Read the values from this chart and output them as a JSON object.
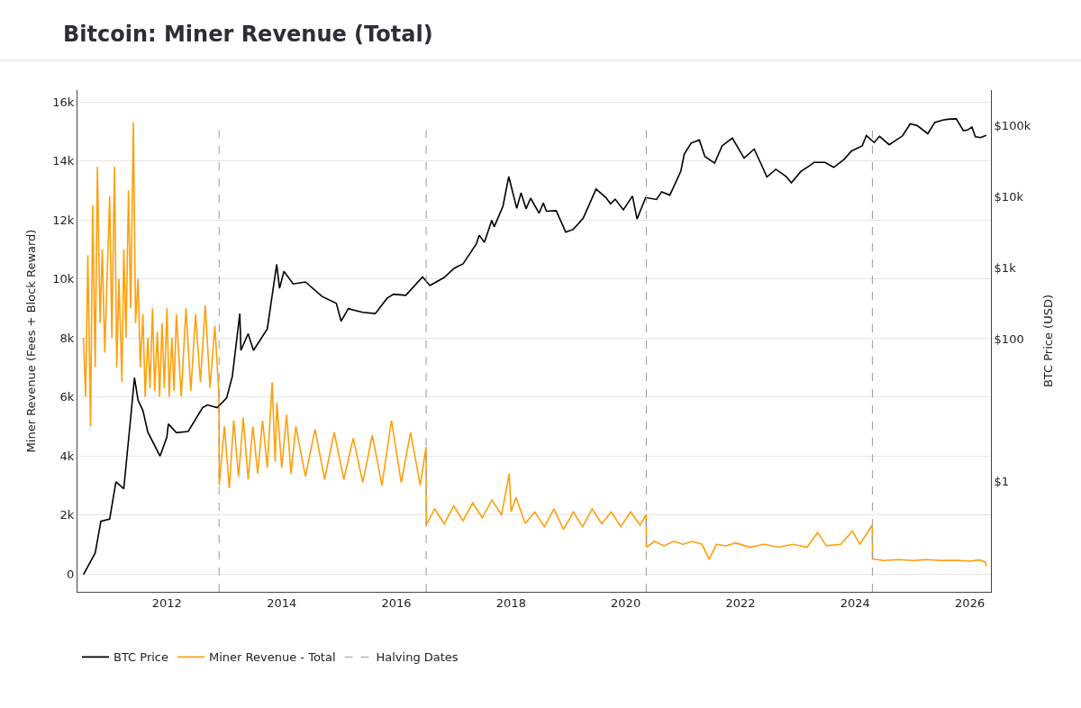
{
  "chart_data": {
    "type": "line",
    "title": "Bitcoin: Miner Revenue (Total)",
    "ylabel": "Miner Revenue (Fees + Block Reward)",
    "y2label": "BTC Price (USD)",
    "xlim": [
      "2010-06-10",
      "2026-05-15"
    ],
    "xticks": [
      {
        "value": "2012-01-01",
        "label": "2012"
      },
      {
        "value": "2014-01-01",
        "label": "2014"
      },
      {
        "value": "2016-01-01",
        "label": "2016"
      },
      {
        "value": "2018-01-01",
        "label": "2018"
      },
      {
        "value": "2020-01-01",
        "label": "2020"
      },
      {
        "value": "2022-01-01",
        "label": "2022"
      },
      {
        "value": "2024-01-01",
        "label": "2024"
      },
      {
        "value": "2026-01-01",
        "label": "2026"
      }
    ],
    "ylim": [
      -610,
      16400
    ],
    "yticks": [
      {
        "value": 0,
        "label": "0"
      },
      {
        "value": 2000,
        "label": "2k"
      },
      {
        "value": 4000,
        "label": "4k"
      },
      {
        "value": 6000,
        "label": "6k"
      },
      {
        "value": 8000,
        "label": "8k"
      },
      {
        "value": 10000,
        "label": "10k"
      },
      {
        "value": 12000,
        "label": "12k"
      },
      {
        "value": 14000,
        "label": "14k"
      },
      {
        "value": 16000,
        "label": "16k"
      }
    ],
    "y2lim": [
      0.0286,
      316000
    ],
    "y2ticks": [
      {
        "value": 1,
        "label": "$1"
      },
      {
        "value": 100,
        "label": "$100"
      },
      {
        "value": 1000,
        "label": "$1k"
      },
      {
        "value": 10000,
        "label": "$10k"
      },
      {
        "value": 100000,
        "label": "$100k"
      }
    ],
    "log": "y2",
    "grid": "y",
    "legend": "bottom",
    "marker": "none",
    "line_style": "solid",
    "series": [
      {
        "name": "BTC Price",
        "color": "#000000",
        "axis": "y2",
        "x": [
          "2010-07-18",
          "2010-10-01",
          "2010-11-06",
          "2011-01-01",
          "2011-02-10",
          "2011-04-01",
          "2011-05-15",
          "2011-06-08",
          "2011-07-01",
          "2011-08-01",
          "2011-09-01",
          "2011-11-18",
          "2011-12-31",
          "2012-01-10",
          "2012-03-01",
          "2012-05-15",
          "2012-08-15",
          "2012-09-15",
          "2012-11-15",
          "2013-01-15",
          "2013-02-20",
          "2013-04-09",
          "2013-04-16",
          "2013-06-01",
          "2013-07-05",
          "2013-10-01",
          "2013-11-30",
          "2013-12-18",
          "2014-01-15",
          "2014-03-15",
          "2014-06-01",
          "2014-09-15",
          "2014-12-15",
          "2015-01-14",
          "2015-03-01",
          "2015-06-01",
          "2015-08-20",
          "2015-11-04",
          "2015-12-15",
          "2016-03-01",
          "2016-06-16",
          "2016-08-02",
          "2016-11-01",
          "2017-01-04",
          "2017-03-01",
          "2017-05-25",
          "2017-06-12",
          "2017-07-15",
          "2017-08-31",
          "2017-09-15",
          "2017-11-10",
          "2017-12-17",
          "2018-02-06",
          "2018-03-05",
          "2018-04-06",
          "2018-05-05",
          "2018-06-28",
          "2018-07-25",
          "2018-08-14",
          "2018-10-15",
          "2018-12-15",
          "2019-02-01",
          "2019-04-05",
          "2019-06-26",
          "2019-08-28",
          "2019-09-26",
          "2019-10-26",
          "2019-12-17",
          "2020-02-13",
          "2020-03-13",
          "2020-05-07",
          "2020-07-15",
          "2020-08-17",
          "2020-10-08",
          "2020-12-17",
          "2021-01-08",
          "2021-02-21",
          "2021-04-14",
          "2021-05-19",
          "2021-07-20",
          "2021-09-06",
          "2021-11-10",
          "2022-01-24",
          "2022-03-29",
          "2022-05-12",
          "2022-06-18",
          "2022-08-14",
          "2022-10-20",
          "2022-11-21",
          "2023-01-20",
          "2023-03-18",
          "2023-04-14",
          "2023-06-23",
          "2023-08-18",
          "2023-10-25",
          "2023-12-08",
          "2024-02-15",
          "2024-03-13",
          "2024-05-01",
          "2024-06-05",
          "2024-08-05",
          "2024-10-29",
          "2024-12-17",
          "2025-02-01",
          "2025-04-08",
          "2025-05-22",
          "2025-07-14",
          "2025-08-14",
          "2025-10-06",
          "2025-11-21",
          "2025-12-18",
          "2026-01-14",
          "2026-02-05",
          "2026-03-10",
          "2026-04-15"
        ],
        "values": [
          0.05,
          0.1,
          0.28,
          0.3,
          1.0,
          0.8,
          8,
          29,
          14,
          10,
          5,
          2.3,
          4.2,
          6.5,
          4.9,
          5.1,
          11,
          12,
          11,
          15,
          30,
          230,
          70,
          120,
          70,
          140,
          1130,
          520,
          900,
          600,
          640,
          400,
          320,
          180,
          270,
          240,
          230,
          380,
          430,
          415,
          750,
          570,
          740,
          1000,
          1150,
          2200,
          2900,
          2300,
          4700,
          3800,
          7400,
          19300,
          6900,
          11400,
          6800,
          9600,
          5900,
          8200,
          6300,
          6400,
          3200,
          3500,
          5000,
          12900,
          9800,
          8000,
          9300,
          6600,
          10300,
          4900,
          9800,
          9200,
          11800,
          10600,
          23000,
          40000,
          57000,
          63000,
          37000,
          29800,
          52000,
          67000,
          35000,
          47000,
          29000,
          19000,
          24400,
          19200,
          15800,
          22700,
          27500,
          30500,
          30600,
          26000,
          34000,
          44000,
          52000,
          73000,
          58000,
          71000,
          54000,
          72000,
          106000,
          100000,
          77000,
          111000,
          120000,
          123000,
          125000,
          85000,
          87000,
          96000,
          70000,
          68000,
          73000
        ]
      },
      {
        "name": "Miner Revenue - Total",
        "color": "#ff9f0a",
        "axis": "y",
        "x": [
          "2010-07-18",
          "2010-08-01",
          "2010-08-15",
          "2010-09-01",
          "2010-09-15",
          "2010-10-01",
          "2010-10-15",
          "2010-11-01",
          "2010-11-15",
          "2010-12-01",
          "2011-01-01",
          "2011-01-15",
          "2011-02-01",
          "2011-02-15",
          "2011-03-01",
          "2011-03-20",
          "2011-04-01",
          "2011-04-15",
          "2011-05-01",
          "2011-05-15",
          "2011-06-01",
          "2011-06-15",
          "2011-07-01",
          "2011-07-15",
          "2011-08-01",
          "2011-08-15",
          "2011-09-01",
          "2011-09-15",
          "2011-10-01",
          "2011-10-15",
          "2011-11-01",
          "2011-11-15",
          "2011-12-01",
          "2011-12-15",
          "2012-01-01",
          "2012-01-15",
          "2012-02-01",
          "2012-02-15",
          "2012-03-01",
          "2012-04-01",
          "2012-05-01",
          "2012-06-01",
          "2012-07-01",
          "2012-08-01",
          "2012-09-01",
          "2012-10-01",
          "2012-11-01",
          "2012-11-27",
          "2012-11-29",
          "2013-01-01",
          "2013-02-01",
          "2013-03-01",
          "2013-04-01",
          "2013-05-01",
          "2013-06-01",
          "2013-07-01",
          "2013-08-01",
          "2013-09-01",
          "2013-10-01",
          "2013-11-01",
          "2013-11-20",
          "2013-12-01",
          "2014-01-01",
          "2014-02-01",
          "2014-03-01",
          "2014-04-01",
          "2014-06-01",
          "2014-08-01",
          "2014-10-01",
          "2014-12-01",
          "2015-02-01",
          "2015-04-01",
          "2015-06-01",
          "2015-08-01",
          "2015-10-01",
          "2015-12-01",
          "2016-02-01",
          "2016-04-01",
          "2016-06-01",
          "2016-07-08",
          "2016-07-10",
          "2016-09-01",
          "2016-11-01",
          "2017-01-01",
          "2017-03-01",
          "2017-05-01",
          "2017-07-01",
          "2017-09-01",
          "2017-11-01",
          "2017-12-20",
          "2018-01-01",
          "2018-02-01",
          "2018-04-01",
          "2018-06-01",
          "2018-08-01",
          "2018-10-01",
          "2018-12-01",
          "2019-02-01",
          "2019-04-01",
          "2019-06-01",
          "2019-08-01",
          "2019-10-01",
          "2019-12-01",
          "2020-02-01",
          "2020-04-01",
          "2020-05-10",
          "2020-05-12",
          "2020-07-01",
          "2020-09-01",
          "2020-11-01",
          "2021-01-01",
          "2021-03-01",
          "2021-05-01",
          "2021-06-15",
          "2021-08-01",
          "2021-10-01",
          "2021-12-01",
          "2022-03-01",
          "2022-06-01",
          "2022-09-01",
          "2022-12-01",
          "2023-03-01",
          "2023-05-08",
          "2023-07-01",
          "2023-10-01",
          "2023-12-15",
          "2024-02-01",
          "2024-04-19",
          "2024-04-21",
          "2024-07-01",
          "2024-10-01",
          "2025-01-01",
          "2025-04-01",
          "2025-07-01",
          "2025-10-01",
          "2026-01-01",
          "2026-03-01",
          "2026-04-10",
          "2026-04-15"
        ],
        "values": [
          8000,
          6000,
          10800,
          5000,
          12500,
          7000,
          13800,
          8500,
          11000,
          7500,
          12800,
          8000,
          13800,
          7000,
          10000,
          6500,
          11000,
          8000,
          13000,
          9000,
          15300,
          8500,
          10000,
          7000,
          8800,
          6000,
          8000,
          6300,
          9000,
          6200,
          8200,
          6000,
          8500,
          6300,
          9000,
          6000,
          8000,
          6200,
          8800,
          6000,
          9000,
          6200,
          8800,
          6500,
          9100,
          6300,
          8400,
          6100,
          3000,
          5000,
          2900,
          5200,
          3300,
          5300,
          3200,
          5000,
          3400,
          5200,
          3600,
          6500,
          3800,
          5800,
          3600,
          5400,
          3400,
          5000,
          3300,
          4900,
          3200,
          4800,
          3200,
          4600,
          3100,
          4700,
          3000,
          5200,
          3100,
          4800,
          3000,
          4300,
          1650,
          2200,
          1700,
          2300,
          1800,
          2400,
          1900,
          2500,
          2000,
          3400,
          2100,
          2600,
          1700,
          2100,
          1600,
          2200,
          1500,
          2100,
          1600,
          2200,
          1700,
          2100,
          1600,
          2100,
          1650,
          2000,
          900,
          1100,
          950,
          1100,
          1000,
          1100,
          1000,
          500,
          1000,
          950,
          1050,
          900,
          1000,
          900,
          1000,
          900,
          1400,
          950,
          1000,
          1450,
          1000,
          1650,
          500,
          450,
          480,
          450,
          480,
          450,
          460,
          430,
          470,
          400,
          250
        ]
      }
    ],
    "ref_lines": [
      {
        "axis": "x",
        "value": "2012-11-28",
        "label": "Halving Dates",
        "color": "#999999",
        "line_style": "dashed"
      },
      {
        "axis": "x",
        "value": "2016-07-09",
        "color": "#999999",
        "line_style": "dashed"
      },
      {
        "axis": "x",
        "value": "2020-05-11",
        "color": "#999999",
        "line_style": "dashed"
      },
      {
        "axis": "x",
        "value": "2024-04-20",
        "color": "#999999",
        "line_style": "dashed"
      }
    ]
  }
}
